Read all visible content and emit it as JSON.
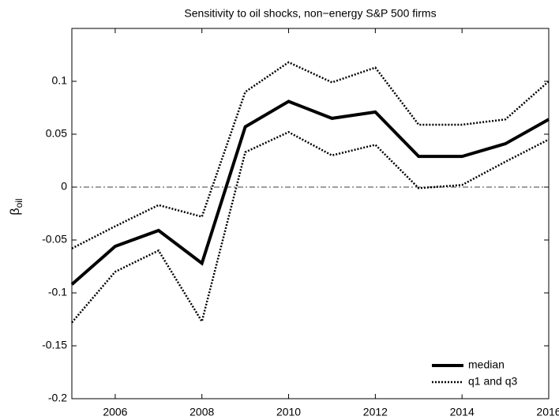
{
  "chart_data": {
    "type": "line",
    "title": "Sensitivity to oil shocks, non−energy S&P 500 firms",
    "ylabel": {
      "symbol": "β",
      "subscript": "oil"
    },
    "x": [
      2005,
      2006,
      2007,
      2008,
      2009,
      2010,
      2011,
      2012,
      2013,
      2014,
      2015,
      2016
    ],
    "series": [
      {
        "name": "median",
        "color": "#000000",
        "style": "solid",
        "values": [
          -0.092,
          -0.056,
          -0.041,
          -0.072,
          0.057,
          0.081,
          0.065,
          0.071,
          0.029,
          0.029,
          0.041,
          0.064
        ]
      },
      {
        "name": "q1 and q3",
        "color": "#000000",
        "style": "dotted",
        "values": [
          -0.058,
          -0.037,
          -0.017,
          -0.028,
          0.09,
          0.118,
          0.099,
          0.113,
          0.059,
          0.059,
          0.064,
          0.1
        ]
      },
      {
        "color": "#000000",
        "style": "dotted",
        "values": [
          -0.128,
          -0.08,
          -0.06,
          -0.127,
          0.033,
          0.052,
          0.03,
          0.04,
          -0.001,
          0.002,
          0.024,
          0.045
        ]
      }
    ],
    "xlim": [
      2005,
      2016
    ],
    "xticks": [
      2006,
      2008,
      2010,
      2012,
      2014,
      2016
    ],
    "ylim": [
      -0.2,
      0.15
    ],
    "yticks": [
      -0.2,
      -0.15,
      -0.1,
      -0.05,
      0,
      0.05,
      0.1
    ],
    "reference_line": 0,
    "grid": false,
    "legend": "lower right"
  }
}
